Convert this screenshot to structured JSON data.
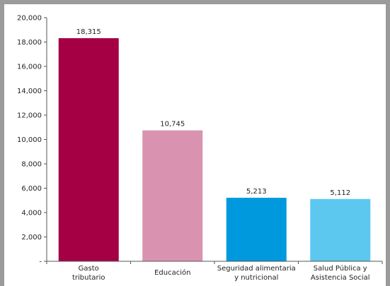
{
  "chart_data": {
    "type": "bar",
    "categories": [
      [
        "Gasto",
        "tributario"
      ],
      [
        "Educación"
      ],
      [
        "Seguridad alimentaria",
        "y nutricional"
      ],
      [
        "Salud Pública y",
        "Asistencia Social"
      ]
    ],
    "values": [
      18315,
      10745,
      5213,
      5112
    ],
    "value_labels": [
      "18,315",
      "10,745",
      "5,213",
      "5,112"
    ],
    "colors": [
      "#a50044",
      "#d993b0",
      "#0099dd",
      "#5cc8f0"
    ],
    "yticks": [
      {
        "value": 0,
        "label": "-"
      },
      {
        "value": 2000,
        "label": "2,000"
      },
      {
        "value": 4000,
        "label": "4,000"
      },
      {
        "value": 6000,
        "label": "6,000"
      },
      {
        "value": 8000,
        "label": "8,000"
      },
      {
        "value": 10000,
        "label": "10,000"
      },
      {
        "value": 12000,
        "label": "12,000"
      },
      {
        "value": 14000,
        "label": "14,000"
      },
      {
        "value": 16000,
        "label": "16,000"
      },
      {
        "value": 18000,
        "label": "18,000"
      },
      {
        "value": 20000,
        "label": "20,000"
      }
    ],
    "ylim": [
      0,
      20000
    ],
    "grid": false,
    "title": "",
    "xlabel": "",
    "ylabel": ""
  }
}
